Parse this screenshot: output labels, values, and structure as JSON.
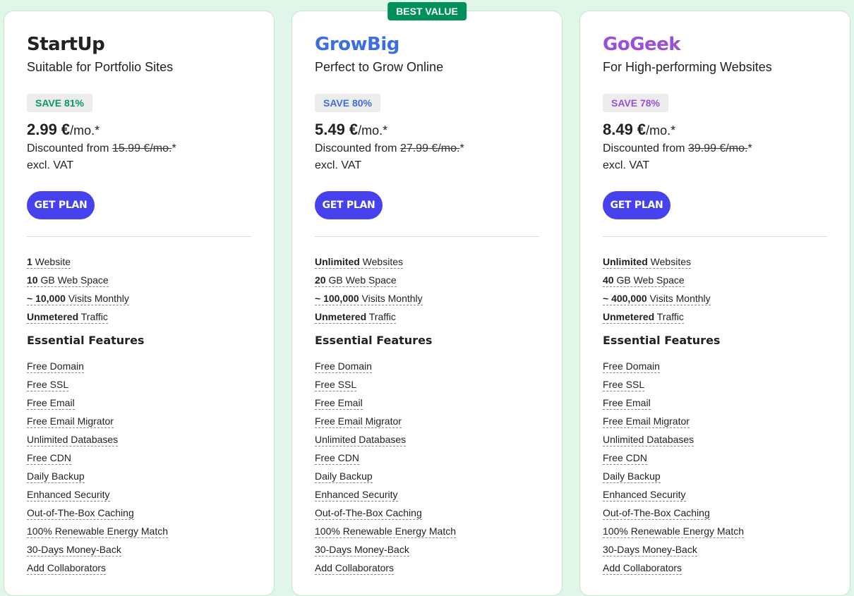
{
  "accent_button": "#4541ec",
  "ribbon_color": "#00915a",
  "plans": [
    {
      "name": "StartUp",
      "color": "#222222",
      "save_color": "#0a9a62",
      "subtitle": "Suitable for Portfolio Sites",
      "save": "SAVE 81%",
      "price": "2.99 €",
      "per": "/mo.*",
      "discount_label": "Discounted from ",
      "old_price": "15.99 €/mo.",
      "old_suffix": "*",
      "vat": "excl. VAT",
      "cta": "GET PLAN",
      "specs": [
        {
          "b": "1",
          "t": " Website"
        },
        {
          "b": "10",
          "t": " GB Web Space"
        },
        {
          "b": "~ 10,000",
          "t": " Visits Monthly"
        },
        {
          "b": "Unmetered",
          "t": " Traffic"
        }
      ]
    },
    {
      "name": "GrowBig",
      "color": "#3b6fe0",
      "save_color": "#3b6fe0",
      "ribbon": "BEST VALUE",
      "subtitle": "Perfect to Grow Online",
      "save": "SAVE 80%",
      "price": "5.49 €",
      "per": "/mo.*",
      "discount_label": "Discounted from ",
      "old_price": "27.99 €/mo.",
      "old_suffix": "*",
      "vat": "excl. VAT",
      "cta": "GET PLAN",
      "specs": [
        {
          "b": "Unlimited",
          "t": " Websites"
        },
        {
          "b": "20",
          "t": " GB Web Space"
        },
        {
          "b": "~ 100,000",
          "t": " Visits Monthly"
        },
        {
          "b": "Unmetered",
          "t": " Traffic"
        }
      ]
    },
    {
      "name": "GoGeek",
      "color": "#9b4fd8",
      "save_color": "#9b4fd8",
      "subtitle": "For High-performing Websites",
      "save": "SAVE 78%",
      "price": "8.49 €",
      "per": "/mo.*",
      "discount_label": "Discounted from ",
      "old_price": "39.99 €/mo.",
      "old_suffix": "*",
      "vat": "excl. VAT",
      "cta": "GET PLAN",
      "specs": [
        {
          "b": "Unlimited",
          "t": " Websites"
        },
        {
          "b": "40",
          "t": " GB Web Space"
        },
        {
          "b": "~ 400,000",
          "t": " Visits Monthly"
        },
        {
          "b": "Unmetered",
          "t": " Traffic"
        }
      ]
    }
  ],
  "essential_title": "Essential Features",
  "features": [
    "Free Domain",
    "Free SSL",
    "Free Email",
    "Free Email Migrator",
    "Unlimited Databases",
    "Free CDN",
    "Daily Backup",
    "Enhanced Security",
    "Out-of-The-Box Caching",
    "100% Renewable Energy Match",
    "30-Days Money-Back",
    "Add Collaborators"
  ]
}
